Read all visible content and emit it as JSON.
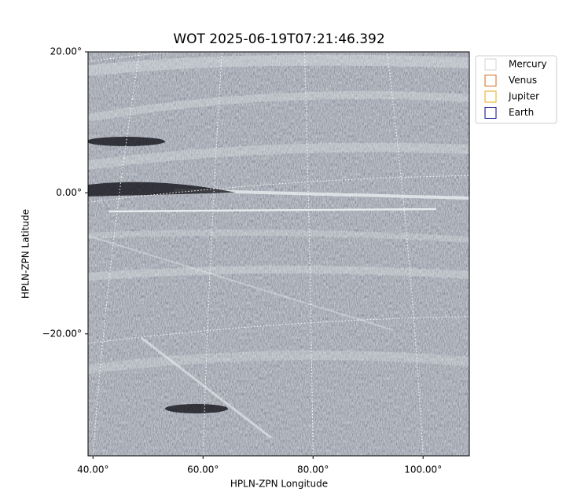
{
  "chart_data": {
    "type": "image",
    "title": "WOT 2025-06-19T07:21:46.392",
    "x_label": "HPLN-ZPN Longitude",
    "y_label": "HPLN-ZPN Latitude",
    "xlim": [
      39.1,
      108.4
    ],
    "ylim": [
      -37.3,
      20
    ],
    "xticks": [
      {
        "value": 40,
        "label": "40.00°"
      },
      {
        "value": 60,
        "label": "60.00°"
      },
      {
        "value": 80,
        "label": "80.00°"
      },
      {
        "value": 100,
        "label": "100.00°"
      }
    ],
    "yticks": [
      {
        "value": 20,
        "label": "20.00°"
      },
      {
        "value": 0,
        "label": "0.00°"
      },
      {
        "value": -20,
        "label": "−20.00°"
      }
    ],
    "grid": true,
    "legend": "upper right",
    "legend_entries": [
      {
        "name": "Mercury",
        "color": "#d3d3d3"
      },
      {
        "name": "Venus",
        "color": "#d2691e"
      },
      {
        "name": "Jupiter",
        "color": "#e6a817"
      },
      {
        "name": "Earth",
        "color": "#000080"
      }
    ]
  }
}
